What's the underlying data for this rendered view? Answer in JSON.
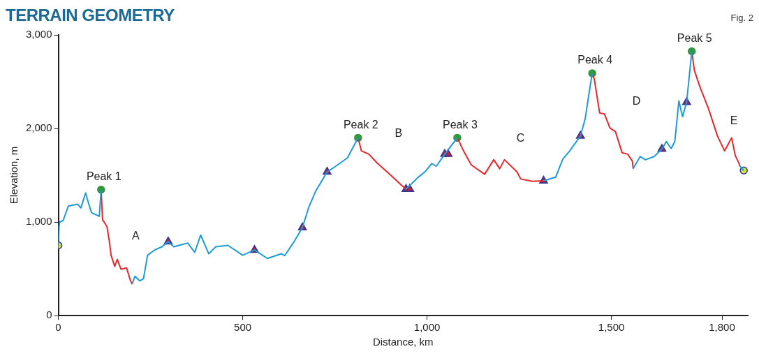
{
  "chart_data": {
    "type": "line",
    "title": "TERRAIN GEOMETRY",
    "xlabel": "Distance, km",
    "ylabel": "Elevation, m",
    "annotations": [
      "Fig. 2",
      {
        "text": "Peak 1",
        "x": 116,
        "y": 1345
      },
      {
        "text": "Peak 2",
        "x": 813,
        "y": 1900
      },
      {
        "text": "Peak 3",
        "x": 1082,
        "y": 1900
      },
      {
        "text": "Peak 4",
        "x": 1448,
        "y": 2590
      },
      {
        "text": "Peak 5",
        "x": 1718,
        "y": 2825
      },
      "A",
      "B",
      "C",
      "D",
      "E"
    ],
    "xlim": [
      0,
      1870
    ],
    "xticks": [
      0,
      500,
      {
        "value": 1000,
        "label": "1,000"
      },
      {
        "value": 1500,
        "label": "1,500"
      },
      {
        "value": 1800,
        "label": "1,800"
      }
    ],
    "ylim": [
      0,
      3000
    ],
    "yticks": [
      0,
      {
        "value": 1000,
        "label": "1,000"
      },
      {
        "value": 2000,
        "label": "2,000"
      },
      {
        "value": 3000,
        "label": "3,000"
      }
    ],
    "grid": false,
    "legend": false,
    "series": [
      {
        "marker": "none",
        "color": "#1e9ad6",
        "x": [
          0,
          2,
          4,
          13,
          27,
          52,
          61,
          74,
          82,
          90,
          111,
          116,
          158,
          200,
          208,
          221,
          231,
          242,
          261,
          281,
          298,
          313,
          351,
          370,
          386,
          408,
          427,
          460,
          500,
          532,
          567,
          605,
          614,
          637,
          662,
          679,
          698,
          729,
          752,
          784,
          813,
          878,
          943,
          975,
          994,
          1013,
          1025,
          1048,
          1082,
          1200,
          1316,
          1349,
          1368,
          1387,
          1416,
          1429,
          1443,
          1448,
          1500,
          1559,
          1567,
          1578,
          1592,
          1616,
          1637,
          1649,
          1662,
          1672,
          1683,
          1693,
          1704,
          1718,
          1780,
          1849,
          1859
        ],
        "values": [
          750,
          950,
          1000,
          1015,
          1170,
          1190,
          1150,
          1310,
          1200,
          1100,
          1060,
          1345,
          null,
          335,
          420,
          370,
          395,
          645,
          700,
          735,
          790,
          735,
          775,
          675,
          860,
          660,
          735,
          750,
          645,
          700,
          610,
          660,
          640,
          775,
          940,
          1155,
          1330,
          1535,
          1595,
          1685,
          1900,
          null,
          1350,
          1475,
          1535,
          1625,
          1595,
          1725,
          1900,
          null,
          1440,
          1480,
          1670,
          1760,
          1920,
          2105,
          2470,
          2590,
          null,
          1570,
          1625,
          1700,
          1665,
          1700,
          1780,
          1860,
          1785,
          1860,
          2295,
          2125,
          2280,
          2825,
          null,
          1595,
          1550
        ]
      },
      {
        "marker": "none",
        "color": "#e8262a",
        "x": [
          116,
          120,
          132,
          139,
          143,
          153,
          160,
          170,
          185,
          195,
          200,
          500,
          813,
          822,
          842,
          866,
          899,
          930,
          943,
          1010,
          1082,
          1099,
          1120,
          1156,
          1181,
          1197,
          1210,
          1244,
          1254,
          1286,
          1316,
          1380,
          1448,
          1454,
          1468,
          1481,
          1496,
          1511,
          1529,
          1544,
          1557,
          1559,
          1640,
          1718,
          1725,
          1740,
          1763,
          1788,
          1807,
          1826,
          1836,
          1845,
          1849
        ],
        "values": [
          1345,
          1025,
          950,
          775,
          645,
          525,
          600,
          495,
          510,
          380,
          335,
          null,
          1900,
          1760,
          1725,
          1625,
          1510,
          1395,
          1350,
          null,
          1900,
          1760,
          1610,
          1510,
          1665,
          1570,
          1665,
          1535,
          1460,
          1435,
          1440,
          null,
          2590,
          2520,
          2165,
          2155,
          2005,
          1965,
          1740,
          1725,
          1650,
          1570,
          null,
          2825,
          2620,
          2445,
          2215,
          1915,
          1760,
          1900,
          1710,
          1635,
          1595
        ]
      },
      {
        "type": "scatter",
        "marker": "triangle",
        "color": "#3a3592",
        "x": [
          298,
          532,
          662,
          729,
          943,
          953,
          1048,
          1057,
          1316,
          1416,
          1637,
          1704
        ],
        "values": [
          790,
          700,
          940,
          1535,
          1350,
          1350,
          1725,
          1725,
          1440,
          1920,
          1780,
          2280
        ]
      },
      {
        "type": "scatter",
        "marker": "circle",
        "color": "#2e9a3e",
        "x": [
          116,
          813,
          1082,
          1448,
          1718
        ],
        "values": [
          1345,
          1900,
          1900,
          2590,
          2825
        ]
      },
      {
        "type": "scatter",
        "marker": "circle",
        "color": "#d4e04a",
        "x": [
          0,
          1859
        ],
        "values": [
          750,
          1550
        ]
      }
    ]
  }
}
